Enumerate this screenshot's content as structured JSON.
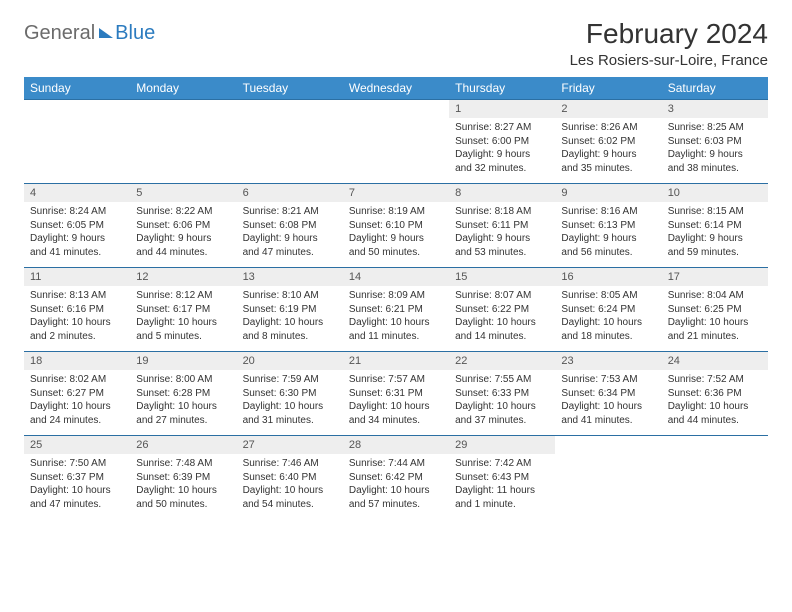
{
  "brand": {
    "part1": "General",
    "part2": "Blue"
  },
  "title": "February 2024",
  "location": "Les Rosiers-sur-Loire, France",
  "colors": {
    "header_bg": "#3b8bc9",
    "header_text": "#ffffff",
    "daynum_bg": "#eeeeee",
    "row_border": "#2b6fa3",
    "brand_gray": "#6b6b6b",
    "brand_blue": "#2b7bbf",
    "text": "#333333",
    "page_bg": "#ffffff"
  },
  "typography": {
    "title_fontsize": 28,
    "location_fontsize": 15,
    "dayhead_fontsize": 12,
    "daynum_fontsize": 11,
    "body_fontsize": 10
  },
  "day_headers": [
    "Sunday",
    "Monday",
    "Tuesday",
    "Wednesday",
    "Thursday",
    "Friday",
    "Saturday"
  ],
  "weeks": [
    [
      {
        "n": "",
        "sr": "",
        "ss": "",
        "dl": ""
      },
      {
        "n": "",
        "sr": "",
        "ss": "",
        "dl": ""
      },
      {
        "n": "",
        "sr": "",
        "ss": "",
        "dl": ""
      },
      {
        "n": "",
        "sr": "",
        "ss": "",
        "dl": ""
      },
      {
        "n": "1",
        "sr": "Sunrise: 8:27 AM",
        "ss": "Sunset: 6:00 PM",
        "dl": "Daylight: 9 hours and 32 minutes."
      },
      {
        "n": "2",
        "sr": "Sunrise: 8:26 AM",
        "ss": "Sunset: 6:02 PM",
        "dl": "Daylight: 9 hours and 35 minutes."
      },
      {
        "n": "3",
        "sr": "Sunrise: 8:25 AM",
        "ss": "Sunset: 6:03 PM",
        "dl": "Daylight: 9 hours and 38 minutes."
      }
    ],
    [
      {
        "n": "4",
        "sr": "Sunrise: 8:24 AM",
        "ss": "Sunset: 6:05 PM",
        "dl": "Daylight: 9 hours and 41 minutes."
      },
      {
        "n": "5",
        "sr": "Sunrise: 8:22 AM",
        "ss": "Sunset: 6:06 PM",
        "dl": "Daylight: 9 hours and 44 minutes."
      },
      {
        "n": "6",
        "sr": "Sunrise: 8:21 AM",
        "ss": "Sunset: 6:08 PM",
        "dl": "Daylight: 9 hours and 47 minutes."
      },
      {
        "n": "7",
        "sr": "Sunrise: 8:19 AM",
        "ss": "Sunset: 6:10 PM",
        "dl": "Daylight: 9 hours and 50 minutes."
      },
      {
        "n": "8",
        "sr": "Sunrise: 8:18 AM",
        "ss": "Sunset: 6:11 PM",
        "dl": "Daylight: 9 hours and 53 minutes."
      },
      {
        "n": "9",
        "sr": "Sunrise: 8:16 AM",
        "ss": "Sunset: 6:13 PM",
        "dl": "Daylight: 9 hours and 56 minutes."
      },
      {
        "n": "10",
        "sr": "Sunrise: 8:15 AM",
        "ss": "Sunset: 6:14 PM",
        "dl": "Daylight: 9 hours and 59 minutes."
      }
    ],
    [
      {
        "n": "11",
        "sr": "Sunrise: 8:13 AM",
        "ss": "Sunset: 6:16 PM",
        "dl": "Daylight: 10 hours and 2 minutes."
      },
      {
        "n": "12",
        "sr": "Sunrise: 8:12 AM",
        "ss": "Sunset: 6:17 PM",
        "dl": "Daylight: 10 hours and 5 minutes."
      },
      {
        "n": "13",
        "sr": "Sunrise: 8:10 AM",
        "ss": "Sunset: 6:19 PM",
        "dl": "Daylight: 10 hours and 8 minutes."
      },
      {
        "n": "14",
        "sr": "Sunrise: 8:09 AM",
        "ss": "Sunset: 6:21 PM",
        "dl": "Daylight: 10 hours and 11 minutes."
      },
      {
        "n": "15",
        "sr": "Sunrise: 8:07 AM",
        "ss": "Sunset: 6:22 PM",
        "dl": "Daylight: 10 hours and 14 minutes."
      },
      {
        "n": "16",
        "sr": "Sunrise: 8:05 AM",
        "ss": "Sunset: 6:24 PM",
        "dl": "Daylight: 10 hours and 18 minutes."
      },
      {
        "n": "17",
        "sr": "Sunrise: 8:04 AM",
        "ss": "Sunset: 6:25 PM",
        "dl": "Daylight: 10 hours and 21 minutes."
      }
    ],
    [
      {
        "n": "18",
        "sr": "Sunrise: 8:02 AM",
        "ss": "Sunset: 6:27 PM",
        "dl": "Daylight: 10 hours and 24 minutes."
      },
      {
        "n": "19",
        "sr": "Sunrise: 8:00 AM",
        "ss": "Sunset: 6:28 PM",
        "dl": "Daylight: 10 hours and 27 minutes."
      },
      {
        "n": "20",
        "sr": "Sunrise: 7:59 AM",
        "ss": "Sunset: 6:30 PM",
        "dl": "Daylight: 10 hours and 31 minutes."
      },
      {
        "n": "21",
        "sr": "Sunrise: 7:57 AM",
        "ss": "Sunset: 6:31 PM",
        "dl": "Daylight: 10 hours and 34 minutes."
      },
      {
        "n": "22",
        "sr": "Sunrise: 7:55 AM",
        "ss": "Sunset: 6:33 PM",
        "dl": "Daylight: 10 hours and 37 minutes."
      },
      {
        "n": "23",
        "sr": "Sunrise: 7:53 AM",
        "ss": "Sunset: 6:34 PM",
        "dl": "Daylight: 10 hours and 41 minutes."
      },
      {
        "n": "24",
        "sr": "Sunrise: 7:52 AM",
        "ss": "Sunset: 6:36 PM",
        "dl": "Daylight: 10 hours and 44 minutes."
      }
    ],
    [
      {
        "n": "25",
        "sr": "Sunrise: 7:50 AM",
        "ss": "Sunset: 6:37 PM",
        "dl": "Daylight: 10 hours and 47 minutes."
      },
      {
        "n": "26",
        "sr": "Sunrise: 7:48 AM",
        "ss": "Sunset: 6:39 PM",
        "dl": "Daylight: 10 hours and 50 minutes."
      },
      {
        "n": "27",
        "sr": "Sunrise: 7:46 AM",
        "ss": "Sunset: 6:40 PM",
        "dl": "Daylight: 10 hours and 54 minutes."
      },
      {
        "n": "28",
        "sr": "Sunrise: 7:44 AM",
        "ss": "Sunset: 6:42 PM",
        "dl": "Daylight: 10 hours and 57 minutes."
      },
      {
        "n": "29",
        "sr": "Sunrise: 7:42 AM",
        "ss": "Sunset: 6:43 PM",
        "dl": "Daylight: 11 hours and 1 minute."
      },
      {
        "n": "",
        "sr": "",
        "ss": "",
        "dl": ""
      },
      {
        "n": "",
        "sr": "",
        "ss": "",
        "dl": ""
      }
    ]
  ]
}
